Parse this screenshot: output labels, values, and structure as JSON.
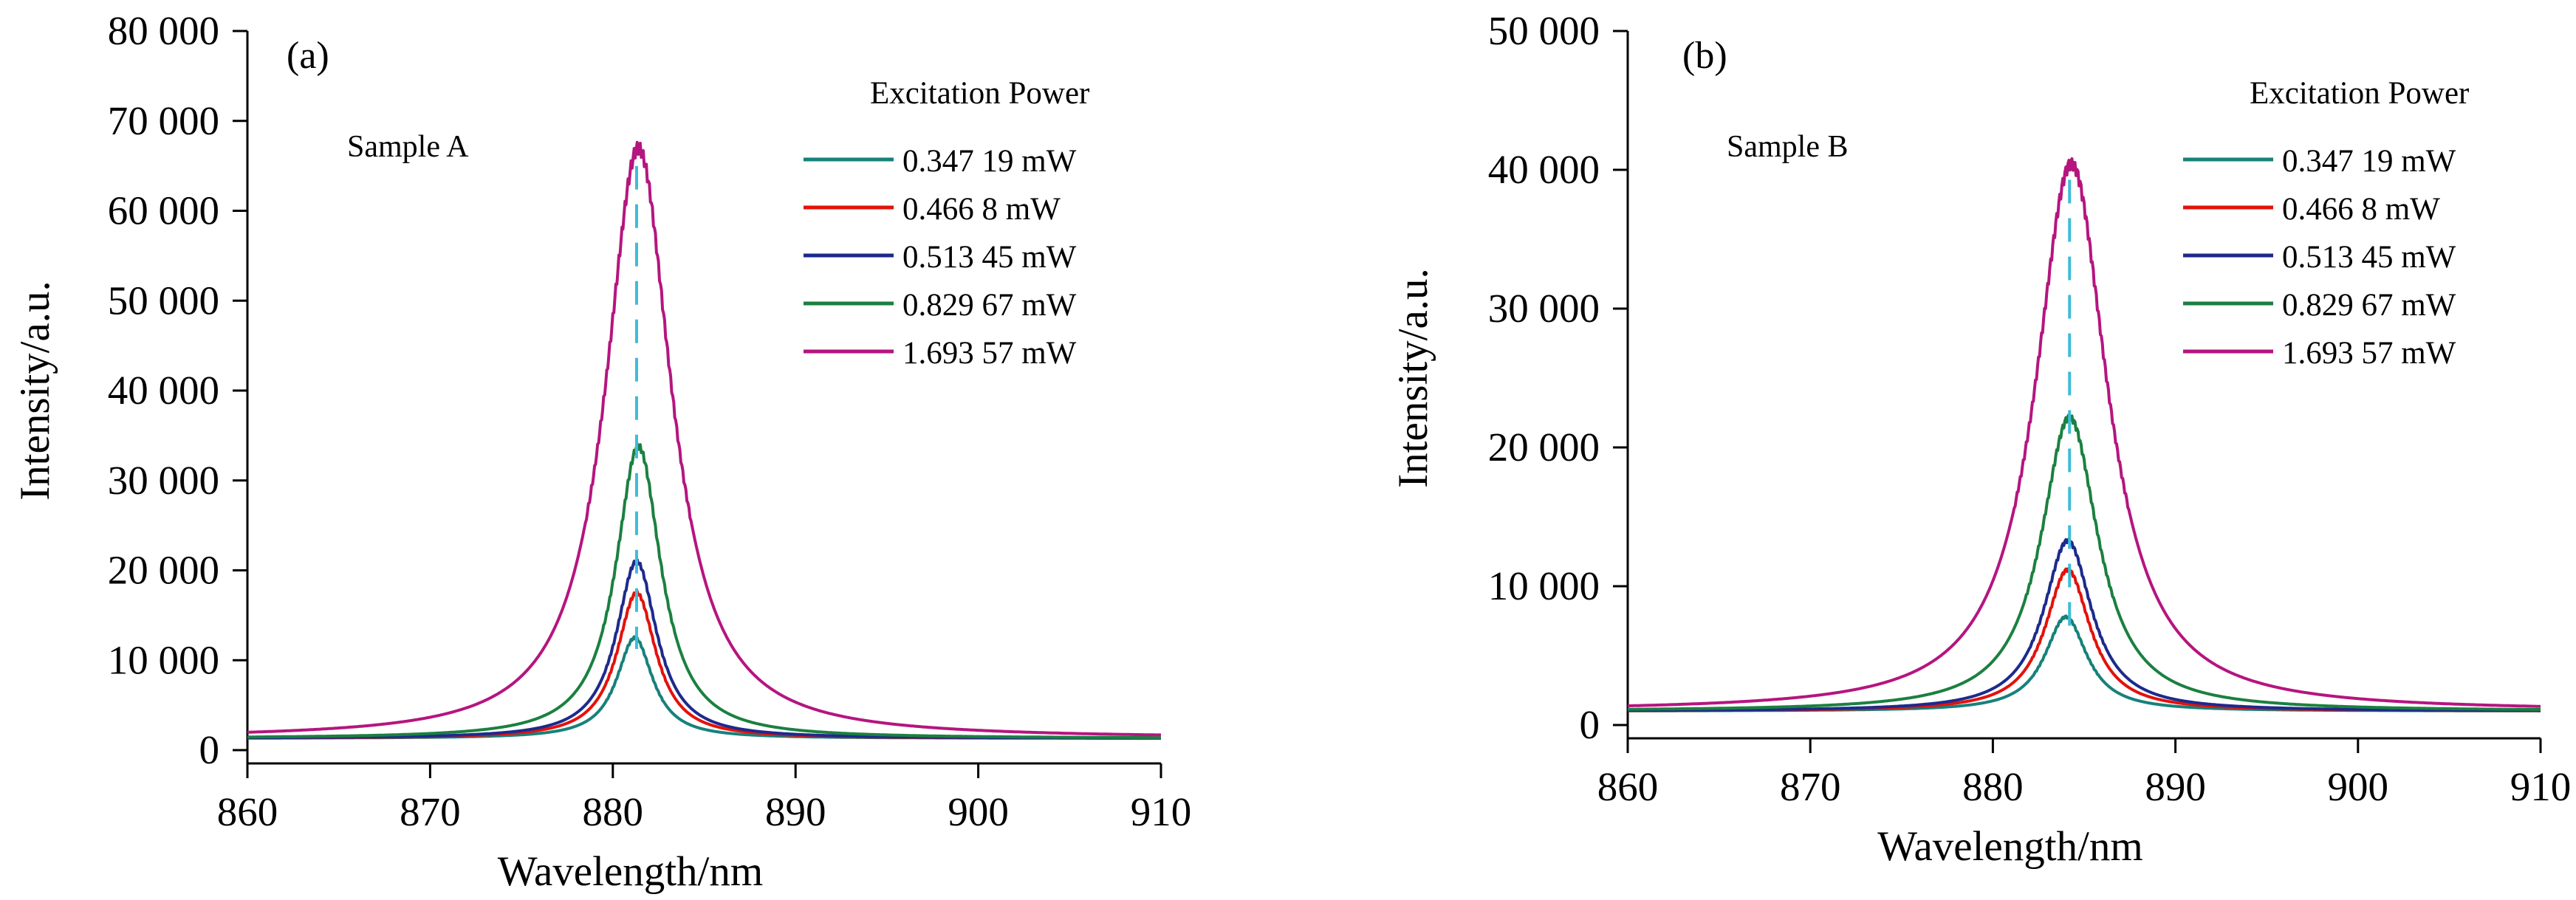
{
  "chart_data": [
    {
      "type": "line",
      "panel_label": "(a)",
      "annotation": "Sample A",
      "xlabel": "Wavelength/nm",
      "ylabel": "Intensity/a.u.",
      "xlim": [
        860,
        910
      ],
      "ylim": [
        0,
        80000
      ],
      "x_ticks": [
        860,
        870,
        880,
        890,
        900,
        910
      ],
      "x_tick_labels": [
        "860",
        "870",
        "880",
        "890",
        "900",
        "910"
      ],
      "y_ticks": [
        0,
        10000,
        20000,
        30000,
        40000,
        50000,
        60000,
        70000,
        80000
      ],
      "y_tick_labels": [
        "0",
        "10 000",
        "20 000",
        "30 000",
        "40 000",
        "50 000",
        "60 000",
        "70 000",
        "80 000"
      ],
      "grid": false,
      "legend_title": "Excitation Power",
      "legend_position": "top-right",
      "peak_marker": {
        "x": 881.3,
        "style": "dashed",
        "color": "#3fbcd8"
      },
      "series": [
        {
          "name": "0.347 19 mW",
          "color": "#17817a",
          "peak_x": 881.2,
          "peak_y": 12500,
          "baseline": 1300,
          "hwhm": 1.2
        },
        {
          "name": "0.466 8 mW",
          "color": "#e3120b",
          "peak_x": 881.3,
          "peak_y": 17500,
          "baseline": 1300,
          "hwhm": 1.3
        },
        {
          "name": "0.513 45 mW",
          "color": "#1d2a8c",
          "peak_x": 881.3,
          "peak_y": 21000,
          "baseline": 1300,
          "hwhm": 1.35
        },
        {
          "name": "0.829 67 mW",
          "color": "#1b8040",
          "peak_x": 881.4,
          "peak_y": 33800,
          "baseline": 1300,
          "hwhm": 1.5
        },
        {
          "name": "1.693 57 mW",
          "color": "#b5157f",
          "peak_x": 881.4,
          "peak_y": 67000,
          "baseline": 1300,
          "hwhm": 2.2
        }
      ]
    },
    {
      "type": "line",
      "panel_label": "(b)",
      "annotation": "Sample B",
      "xlabel": "Wavelength/nm",
      "ylabel": "Intensity/a.u.",
      "xlim": [
        860,
        910
      ],
      "ylim": [
        0,
        50000
      ],
      "x_ticks": [
        860,
        870,
        880,
        890,
        900,
        910
      ],
      "x_tick_labels": [
        "860",
        "870",
        "880",
        "890",
        "900",
        "910"
      ],
      "y_ticks": [
        0,
        10000,
        20000,
        30000,
        40000,
        50000
      ],
      "y_tick_labels": [
        "0",
        "10 000",
        "20 000",
        "30 000",
        "40 000",
        "50 000"
      ],
      "grid": false,
      "legend_title": "Excitation Power",
      "legend_position": "top-right",
      "peak_marker": {
        "x": 884.2,
        "style": "dashed",
        "color": "#3fbcd8"
      },
      "series": [
        {
          "name": "0.347 19 mW",
          "color": "#17817a",
          "peak_x": 884.0,
          "peak_y": 7800,
          "baseline": 1000,
          "hwhm": 1.4
        },
        {
          "name": "0.466 8 mW",
          "color": "#e3120b",
          "peak_x": 884.1,
          "peak_y": 11200,
          "baseline": 1000,
          "hwhm": 1.5
        },
        {
          "name": "0.513 45 mW",
          "color": "#1d2a8c",
          "peak_x": 884.1,
          "peak_y": 13300,
          "baseline": 1000,
          "hwhm": 1.6
        },
        {
          "name": "0.829 67 mW",
          "color": "#1b8040",
          "peak_x": 884.2,
          "peak_y": 22200,
          "baseline": 1000,
          "hwhm": 1.9
        },
        {
          "name": "1.693 57 mW",
          "color": "#b5157f",
          "peak_x": 884.3,
          "peak_y": 40500,
          "baseline": 1000,
          "hwhm": 2.4
        }
      ]
    }
  ]
}
